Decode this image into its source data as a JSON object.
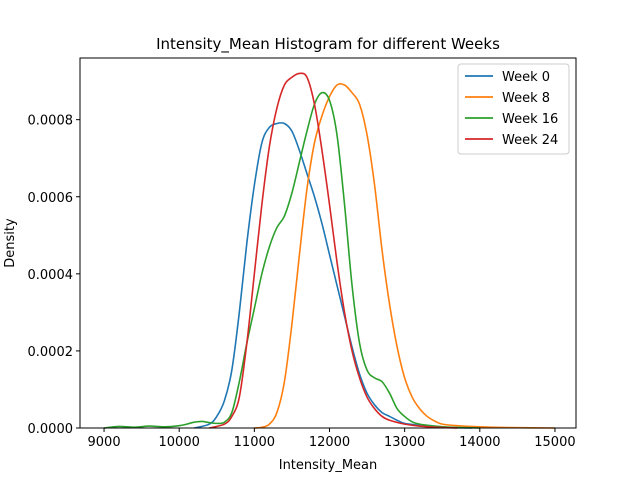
{
  "chart_data": {
    "type": "line",
    "title": "Intensity_Mean Histogram for different Weeks",
    "xlabel": "Intensity_Mean",
    "ylabel": "Density",
    "xlim": [
      8680,
      15280
    ],
    "ylim": [
      0,
      0.00096
    ],
    "x_ticks": [
      9000,
      10000,
      11000,
      12000,
      13000,
      14000,
      15000
    ],
    "y_ticks": [
      0,
      0.0002,
      0.0004,
      0.0006,
      0.0008
    ],
    "y_tick_labels": [
      "0.0000",
      "0.0002",
      "0.0004",
      "0.0006",
      "0.0008"
    ],
    "grid": false,
    "legend_position": "top-right",
    "series": [
      {
        "name": "Week 0",
        "color": "#1f77b4",
        "points": [
          [
            10200,
            0
          ],
          [
            10400,
            1e-05
          ],
          [
            10500,
            3e-05
          ],
          [
            10600,
            7e-05
          ],
          [
            10700,
            0.00015
          ],
          [
            10800,
            0.0003
          ],
          [
            10900,
            0.00048
          ],
          [
            11000,
            0.00063
          ],
          [
            11100,
            0.00074
          ],
          [
            11200,
            0.00078
          ],
          [
            11300,
            0.00079
          ],
          [
            11400,
            0.00079
          ],
          [
            11500,
            0.00077
          ],
          [
            11600,
            0.00072
          ],
          [
            11700,
            0.00066
          ],
          [
            11800,
            0.0006
          ],
          [
            11900,
            0.00053
          ],
          [
            12000,
            0.00045
          ],
          [
            12100,
            0.00037
          ],
          [
            12200,
            0.00029
          ],
          [
            12300,
            0.00021
          ],
          [
            12400,
            0.00014
          ],
          [
            12500,
            9e-05
          ],
          [
            12600,
            6e-05
          ],
          [
            12700,
            4e-05
          ],
          [
            12800,
            3e-05
          ],
          [
            12900,
            2e-05
          ],
          [
            13000,
            1.2e-05
          ],
          [
            13200,
            7e-06
          ],
          [
            13400,
            3e-06
          ],
          [
            13600,
            1e-06
          ],
          [
            13900,
            0
          ]
        ]
      },
      {
        "name": "Week 8",
        "color": "#ff7f0e",
        "points": [
          [
            11000,
            0
          ],
          [
            11100,
            2e-06
          ],
          [
            11200,
            1e-05
          ],
          [
            11300,
            4e-05
          ],
          [
            11400,
            0.00012
          ],
          [
            11500,
            0.00027
          ],
          [
            11600,
            0.00045
          ],
          [
            11700,
            0.00062
          ],
          [
            11800,
            0.00074
          ],
          [
            11900,
            0.00081
          ],
          [
            12000,
            0.00086
          ],
          [
            12100,
            0.00089
          ],
          [
            12200,
            0.00089
          ],
          [
            12300,
            0.00087
          ],
          [
            12400,
            0.00084
          ],
          [
            12500,
            0.00076
          ],
          [
            12600,
            0.00063
          ],
          [
            12700,
            0.00046
          ],
          [
            12800,
            0.00032
          ],
          [
            12900,
            0.00021
          ],
          [
            13000,
            0.00013
          ],
          [
            13100,
            8e-05
          ],
          [
            13200,
            5e-05
          ],
          [
            13300,
            3e-05
          ],
          [
            13400,
            1.8e-05
          ],
          [
            13500,
            1e-05
          ],
          [
            13700,
            6e-06
          ],
          [
            14000,
            3e-06
          ],
          [
            14400,
            1e-06
          ],
          [
            15000,
            0
          ]
        ]
      },
      {
        "name": "Week 16",
        "color": "#2ca02c",
        "points": [
          [
            9000,
            0
          ],
          [
            9200,
            4e-06
          ],
          [
            9400,
            2e-06
          ],
          [
            9600,
            5e-06
          ],
          [
            9800,
            3e-06
          ],
          [
            10000,
            6e-06
          ],
          [
            10100,
            1e-05
          ],
          [
            10200,
            1.5e-05
          ],
          [
            10300,
            1.7e-05
          ],
          [
            10400,
            1.4e-05
          ],
          [
            10500,
            1.2e-05
          ],
          [
            10600,
            1.5e-05
          ],
          [
            10700,
            4e-05
          ],
          [
            10800,
            0.00012
          ],
          [
            10900,
            0.00022
          ],
          [
            11000,
            0.00031
          ],
          [
            11100,
            0.0004
          ],
          [
            11200,
            0.00047
          ],
          [
            11300,
            0.00052
          ],
          [
            11400,
            0.00055
          ],
          [
            11500,
            0.00061
          ],
          [
            11600,
            0.00069
          ],
          [
            11700,
            0.00077
          ],
          [
            11800,
            0.00084
          ],
          [
            11900,
            0.00087
          ],
          [
            12000,
            0.00085
          ],
          [
            12100,
            0.00076
          ],
          [
            12200,
            0.00058
          ],
          [
            12300,
            0.00037
          ],
          [
            12400,
            0.00022
          ],
          [
            12500,
            0.00015
          ],
          [
            12600,
            0.00013
          ],
          [
            12700,
            0.00012
          ],
          [
            12800,
            9e-05
          ],
          [
            12900,
            5e-05
          ],
          [
            13000,
            3e-05
          ],
          [
            13100,
            1.6e-05
          ],
          [
            13200,
            1e-05
          ],
          [
            13400,
            5e-06
          ],
          [
            13600,
            2e-06
          ],
          [
            14000,
            0
          ]
        ]
      },
      {
        "name": "Week 24",
        "color": "#d62728",
        "points": [
          [
            10400,
            0
          ],
          [
            10600,
            1e-05
          ],
          [
            10700,
            3e-05
          ],
          [
            10800,
            8e-05
          ],
          [
            10900,
            0.00022
          ],
          [
            11000,
            0.0004
          ],
          [
            11100,
            0.00058
          ],
          [
            11200,
            0.00073
          ],
          [
            11300,
            0.00083
          ],
          [
            11400,
            0.00089
          ],
          [
            11500,
            0.00091
          ],
          [
            11600,
            0.00092
          ],
          [
            11700,
            0.00091
          ],
          [
            11800,
            0.00084
          ],
          [
            11900,
            0.00072
          ],
          [
            12000,
            0.00058
          ],
          [
            12100,
            0.00043
          ],
          [
            12200,
            0.0003
          ],
          [
            12300,
            0.0002
          ],
          [
            12400,
            0.00013
          ],
          [
            12500,
            8e-05
          ],
          [
            12600,
            5e-05
          ],
          [
            12700,
            3e-05
          ],
          [
            12800,
            2e-05
          ],
          [
            13000,
            1e-05
          ],
          [
            13200,
            5e-06
          ],
          [
            13400,
            2e-06
          ],
          [
            13700,
            0
          ]
        ]
      }
    ]
  }
}
